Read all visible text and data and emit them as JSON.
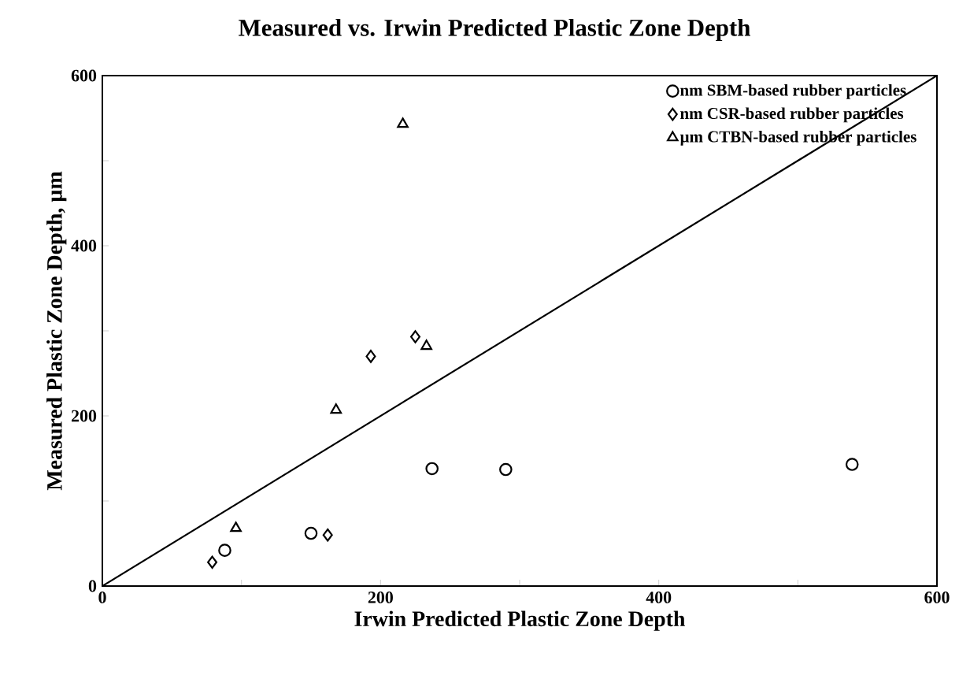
{
  "chart_data": {
    "type": "scatter",
    "title": "Measured vs. Irwin Predicted Plastic Zone Depth",
    "xlabel": "Irwin Predicted Plastic Zone Depth",
    "ylabel": "Measured Plastic Zone Depth, µm",
    "xlim": [
      0,
      600
    ],
    "ylim": [
      0,
      600
    ],
    "xticks": [
      0,
      {
        "value": 100,
        "label": null
      },
      200,
      {
        "value": 300,
        "label": null
      },
      400,
      {
        "value": 500,
        "label": null
      },
      600
    ],
    "yticks": [
      0,
      {
        "value": 100,
        "label": null
      },
      200,
      {
        "value": 300,
        "label": null
      },
      400,
      {
        "value": 500,
        "label": null
      },
      600
    ],
    "grid": false,
    "legend": "top right",
    "series": [
      {
        "name": "nm SBM-based rubber particles",
        "type": "scatter",
        "marker": "circle",
        "color": "#000000",
        "x": [
          88,
          150,
          237,
          290,
          539
        ],
        "values": [
          42,
          62,
          138,
          137,
          143
        ]
      },
      {
        "name": "nm CSR-based rubber particles",
        "type": "scatter",
        "marker": "diamond",
        "color": "#000000",
        "x": [
          79,
          162,
          193,
          225
        ],
        "values": [
          28,
          60,
          270,
          293
        ]
      },
      {
        "name": "µm CTBN-based rubber particles",
        "type": "scatter",
        "marker": "triangle",
        "color": "#000000",
        "x": [
          96,
          168,
          216,
          233
        ],
        "values": [
          68,
          207,
          543,
          282
        ]
      },
      {
        "type": "line",
        "marker": "none",
        "line_style": "solid",
        "color": "#000000",
        "x": [
          0,
          600
        ],
        "values": [
          0,
          600
        ]
      }
    ]
  }
}
